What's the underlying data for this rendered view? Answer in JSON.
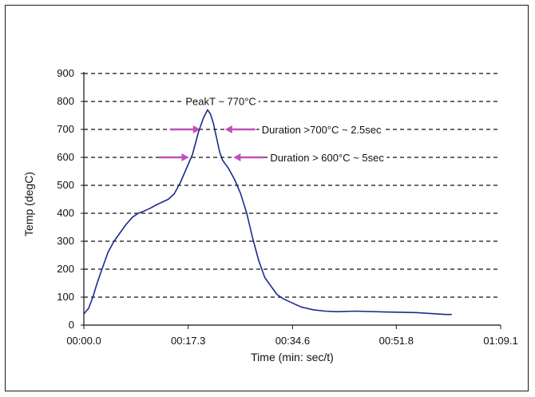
{
  "chart_data": {
    "type": "line",
    "xlabel": "Time (min: sec/t)",
    "ylabel": "Temp (degC)",
    "ylim": [
      0,
      900
    ],
    "xlim": [
      0,
      69.1
    ],
    "y_ticks": [
      "0",
      "100",
      "200",
      "300",
      "400",
      "500",
      "600",
      "700",
      "800",
      "900"
    ],
    "x_ticks": [
      {
        "value": 0,
        "label": "00:00.0"
      },
      {
        "value": 17.3,
        "label": "00:17.3"
      },
      {
        "value": 34.6,
        "label": "00:34.6"
      },
      {
        "value": 51.8,
        "label": "00:51.8"
      },
      {
        "value": 69.1,
        "label": "01:09.1"
      }
    ],
    "grid": "horizontal dashed",
    "line_color": "#1f2a8c",
    "series": [
      {
        "x": [
          0,
          0.8,
          1.5,
          2.2,
          3,
          4,
          5,
          6,
          7,
          8,
          9,
          10,
          11,
          12,
          13,
          14,
          15,
          16,
          17,
          18,
          19,
          19.8,
          20.5,
          21,
          21.5,
          22,
          22.5,
          23,
          23.5,
          24,
          25,
          26,
          27,
          28,
          29,
          30,
          31,
          32,
          33,
          34,
          35,
          36,
          38,
          40,
          42,
          45,
          50,
          55,
          60,
          61
        ],
        "y": [
          40,
          60,
          100,
          150,
          200,
          260,
          300,
          330,
          360,
          385,
          400,
          408,
          418,
          430,
          440,
          450,
          470,
          510,
          560,
          610,
          690,
          740,
          770,
          755,
          720,
          670,
          620,
          590,
          575,
          560,
          520,
          470,
          400,
          310,
          230,
          170,
          140,
          110,
          95,
          85,
          75,
          65,
          55,
          50,
          48,
          50,
          47,
          45,
          38,
          38
        ]
      }
    ],
    "annotations": [
      {
        "text": "PeakT ~ 770°C"
      },
      {
        "text": "Duration >700°C ~ 2.5sec",
        "y": 700,
        "x_from": 19.3,
        "x_to": 23.4
      },
      {
        "text": "Duration > 600°C ~ 5sec",
        "y": 600,
        "x_from": 17.4,
        "x_to": 24.8
      }
    ],
    "annotation_color": "#c050b8"
  }
}
